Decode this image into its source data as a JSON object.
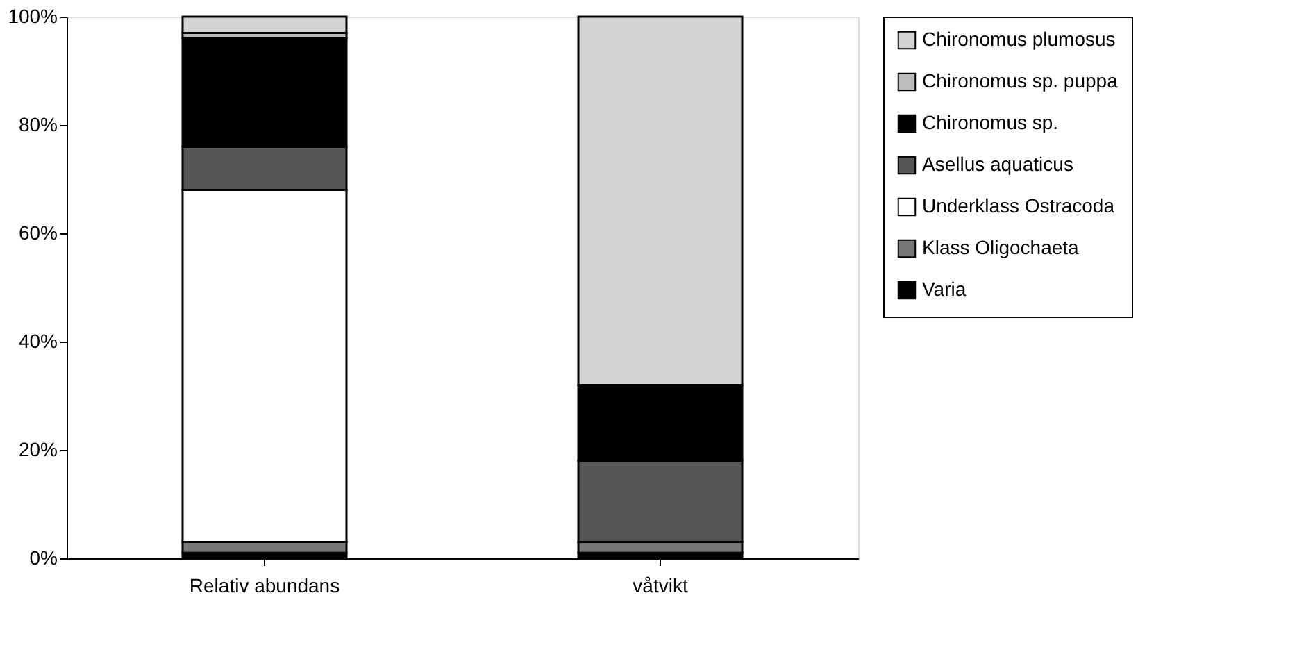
{
  "chart_data": {
    "type": "bar",
    "stacked": true,
    "categories": [
      "Relativ abundans",
      "våtvikt"
    ],
    "series": [
      {
        "name": "Varia",
        "color": "#000000",
        "values": [
          1,
          1
        ]
      },
      {
        "name": "Klass Oligochaeta",
        "color": "#777777",
        "values": [
          2,
          2
        ]
      },
      {
        "name": "Underklass Ostracoda",
        "color": "#ffffff",
        "values": [
          65,
          0
        ]
      },
      {
        "name": "Asellus aquaticus",
        "color": "#555555",
        "values": [
          8,
          15
        ]
      },
      {
        "name": "Chironomus sp.",
        "color": "#000000",
        "values": [
          20,
          14
        ]
      },
      {
        "name": "Chironomus sp. puppa",
        "color": "#bdbdbd",
        "values": [
          1,
          0
        ]
      },
      {
        "name": "Chironomus plumosus",
        "color": "#d4d4d4",
        "values": [
          3,
          68
        ]
      }
    ],
    "ylim": [
      0,
      100
    ],
    "yticks": [
      {
        "value": 0,
        "label": "0%"
      },
      {
        "value": 20,
        "label": "20%"
      },
      {
        "value": 40,
        "label": "40%"
      },
      {
        "value": 60,
        "label": "60%"
      },
      {
        "value": 80,
        "label": "80%"
      },
      {
        "value": 100,
        "label": "100%"
      }
    ],
    "grid": false,
    "legend": "right"
  }
}
